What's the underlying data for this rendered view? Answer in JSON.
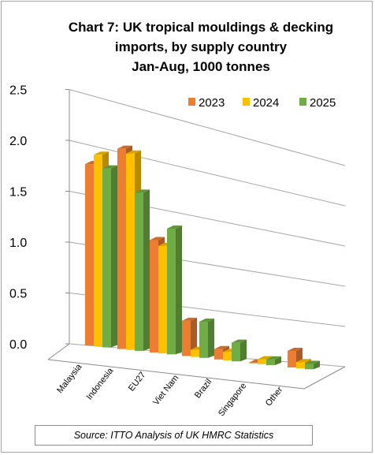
{
  "chart_data": {
    "type": "bar",
    "title_lines": [
      "Chart 7: UK tropical mouldings & decking",
      "imports, by supply country",
      "Jan-Aug, 1000 tonnes"
    ],
    "categories": [
      "Malaysia",
      "Indonesia",
      "EU27",
      "Viet Nam",
      "Brazil",
      "Singapore",
      "Other"
    ],
    "series": [
      {
        "name": "2023",
        "color": "#ed7d31",
        "values": [
          1.8,
          2.06,
          1.2,
          0.39,
          0.12,
          0.0,
          0.21
        ]
      },
      {
        "name": "2024",
        "color": "#ffc000",
        "values": [
          1.92,
          2.04,
          1.16,
          0.08,
          0.1,
          0.06,
          0.08
        ]
      },
      {
        "name": "2025",
        "color": "#70ad47",
        "values": [
          1.81,
          1.66,
          1.37,
          0.41,
          0.22,
          0.07,
          0.07
        ]
      }
    ],
    "yticks": [
      "0.0",
      "0.5",
      "1.0",
      "1.5",
      "2.0",
      "2.5"
    ],
    "ylim": [
      0,
      2.5
    ],
    "grid": true,
    "legend_position": "top-right",
    "source": "Source: ITTO Analysis of UK HMRC Statistics"
  }
}
